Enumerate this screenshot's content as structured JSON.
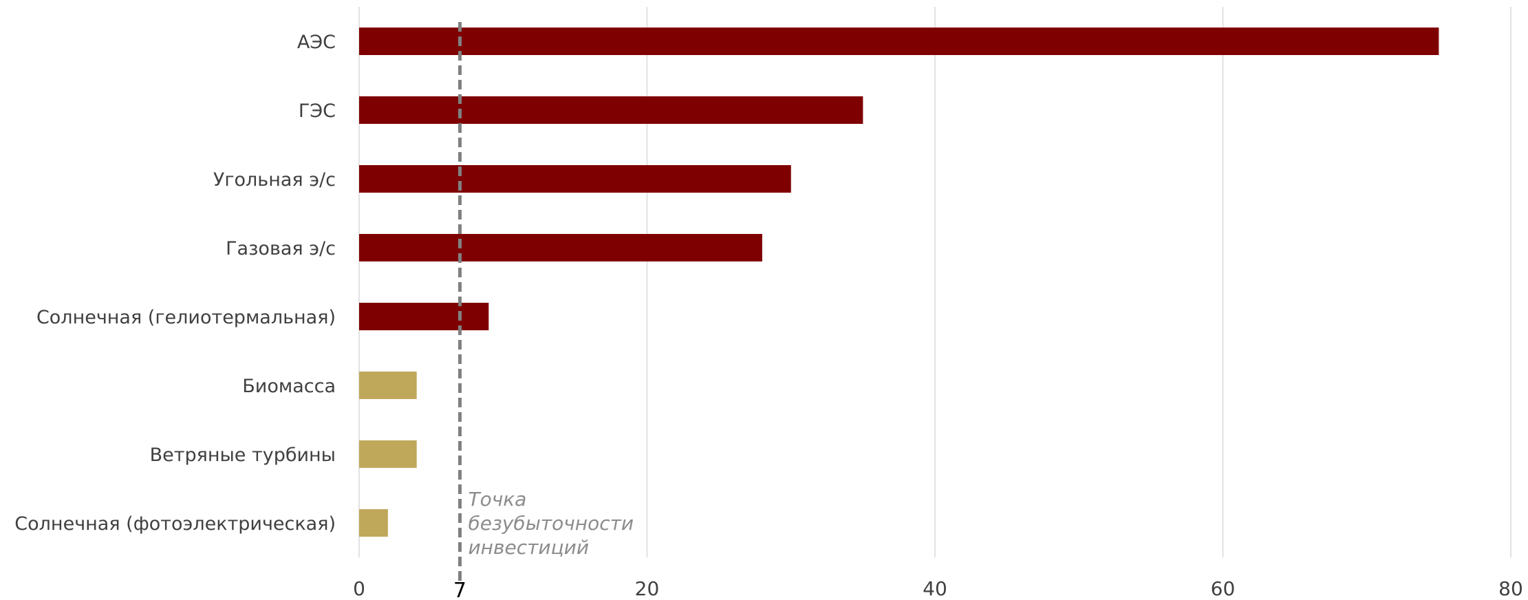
{
  "chart_data": {
    "type": "bar",
    "orientation": "horizontal",
    "categories": [
      "АЭС",
      "ГЭС",
      "Угольная э/с",
      "Газовая э/с",
      "Солнечная (гелиотермальная)",
      "Биомасса",
      "Ветряные турбины",
      "Солнечная (фотоэлектрическая)"
    ],
    "values": [
      75,
      35,
      30,
      28,
      9,
      4,
      4,
      2
    ],
    "bar_colors": [
      "#7f0000",
      "#7f0000",
      "#7f0000",
      "#7f0000",
      "#7f0000",
      "#c0a85a",
      "#c0a85a",
      "#c0a85a"
    ],
    "xlim": [
      0,
      80
    ],
    "xticks": [
      0,
      20,
      40,
      60,
      80
    ],
    "xtick_labels": [
      "0",
      "20",
      "40",
      "60",
      "80"
    ],
    "grid": "vertical",
    "gridline_color": "#d9d9d9",
    "reference_line": {
      "value": 7,
      "label": "7",
      "style": "dashed",
      "color": "#808080",
      "annotation": [
        "Точка",
        "безубыточности",
        "инвестиций"
      ]
    }
  }
}
